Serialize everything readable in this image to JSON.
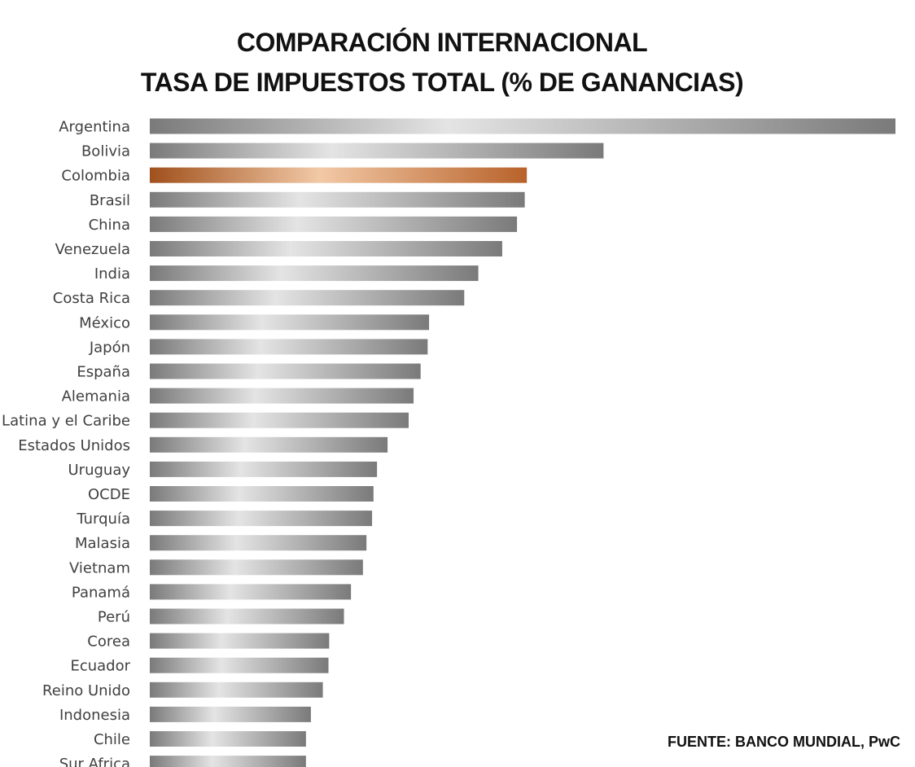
{
  "chart_data": {
    "type": "bar",
    "orientation": "horizontal",
    "title_lines": [
      "COMPARACIÓN INTERNACIONAL",
      "TASA DE IMPUESTOS TOTAL (% DE GANANCIAS)"
    ],
    "categories": [
      "Argentina",
      "Bolivia",
      "Colombia",
      "Brasil",
      "China",
      "Venezuela",
      "India",
      "Costa Rica",
      "México",
      "Japón",
      "España",
      "Alemania",
      "América Latina y el Caribe",
      "Estados Unidos",
      "Uruguay",
      "OCDE",
      "Turquía",
      "Malasia",
      "Vietnam",
      "Panamá",
      "Perú",
      "Corea",
      "Ecuador",
      "Reino Unido",
      "Indonesia",
      "Chile",
      "Sur Africa"
    ],
    "values": [
      106.0,
      64.5,
      53.6,
      53.3,
      52.2,
      50.1,
      46.7,
      44.7,
      39.7,
      39.5,
      38.5,
      37.5,
      36.8,
      33.8,
      32.3,
      31.8,
      31.6,
      30.8,
      30.3,
      28.6,
      27.6,
      25.5,
      25.4,
      24.6,
      22.9,
      22.2,
      22.2
    ],
    "highlight_category": "Colombia",
    "source": "FUENTE: BANCO MUNDIAL, PwC",
    "colors": {
      "bar": "#8a8a8a",
      "bar_light": "#e6e6e6",
      "highlight": "#a0501c",
      "highlight_light": "#f2c9a6"
    },
    "xlim": [
      0,
      106
    ],
    "axis_visible": false,
    "grid": false,
    "legend": "none"
  }
}
